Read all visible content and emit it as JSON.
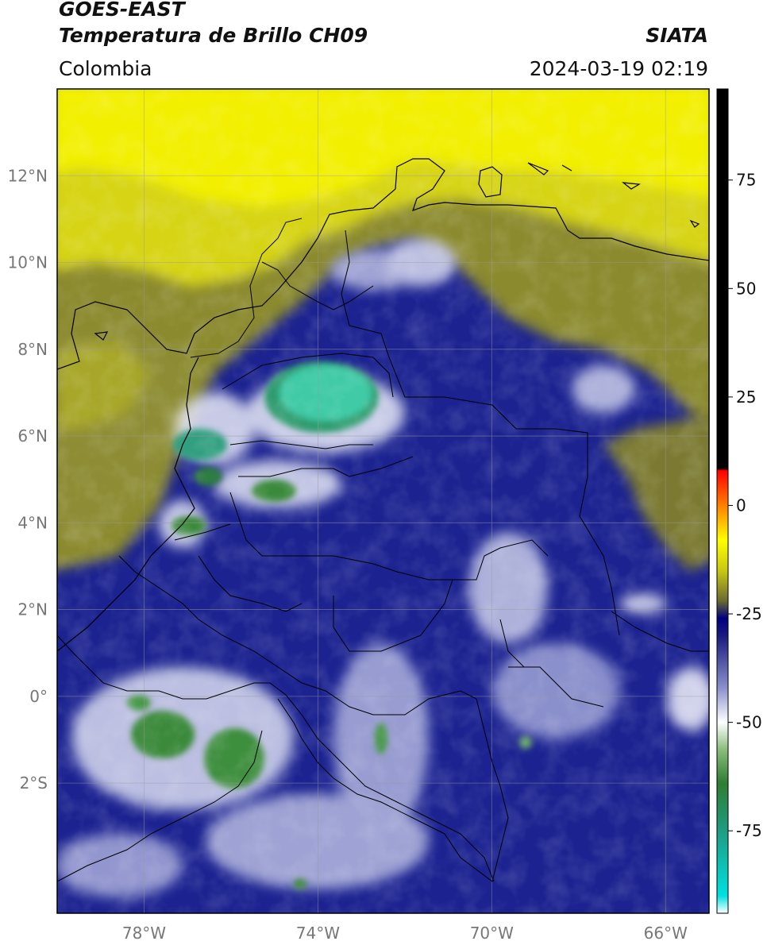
{
  "header": {
    "title": "GOES-EAST",
    "subtitle": "Temperatura de Brillo CH09",
    "region": "Colombia",
    "source": "SIATA",
    "datetime": "2024-03-19 02:19"
  },
  "map": {
    "lon_range": [
      -80,
      -65
    ],
    "lat_range": [
      -5,
      14
    ],
    "lon_ticks": [
      {
        "value": -78,
        "label": "78°W"
      },
      {
        "value": -74,
        "label": "74°W"
      },
      {
        "value": -70,
        "label": "70°W"
      },
      {
        "value": -66,
        "label": "66°W"
      }
    ],
    "lat_ticks": [
      {
        "value": 12,
        "label": "12°N"
      },
      {
        "value": 10,
        "label": "10°N"
      },
      {
        "value": 8,
        "label": "8°N"
      },
      {
        "value": 6,
        "label": "6°N"
      },
      {
        "value": 4,
        "label": "4°N"
      },
      {
        "value": 2,
        "label": "2°N"
      },
      {
        "value": 0,
        "label": "0°"
      },
      {
        "value": -2,
        "label": "2°S"
      }
    ],
    "grid": true
  },
  "colorbar": {
    "ticks": [
      {
        "value": 75,
        "label": "75"
      },
      {
        "value": 50,
        "label": "50"
      },
      {
        "value": 25,
        "label": "25"
      },
      {
        "value": 0,
        "label": "0"
      },
      {
        "value": -25,
        "label": "-25"
      },
      {
        "value": -50,
        "label": "-50"
      },
      {
        "value": -75,
        "label": "-75"
      }
    ],
    "range": [
      -94,
      96
    ],
    "stops": [
      {
        "value": -94,
        "color": "#ffffff"
      },
      {
        "value": -90,
        "color": "#00e0e0"
      },
      {
        "value": -75,
        "color": "#1f9c82"
      },
      {
        "value": -64,
        "color": "#2e7d32"
      },
      {
        "value": -56,
        "color": "#8fbf80"
      },
      {
        "value": -50,
        "color": "#ffffff"
      },
      {
        "value": -42,
        "color": "#8a8fcc"
      },
      {
        "value": -30,
        "color": "#1a1a80"
      },
      {
        "value": -26,
        "color": "#000080"
      },
      {
        "value": -22,
        "color": "#6a6a33"
      },
      {
        "value": -15,
        "color": "#c8c812"
      },
      {
        "value": -8,
        "color": "#ffff00"
      },
      {
        "value": 0,
        "color": "#ff8000"
      },
      {
        "value": 8,
        "color": "#ff0000"
      },
      {
        "value": 8.5,
        "color": "#000000"
      },
      {
        "value": 96,
        "color": "#000000"
      }
    ]
  },
  "colors": {
    "yellow": "#f0ee00",
    "olive": "#8e8a2c",
    "navy": "#1a1f8c",
    "white_cloud": "#e6e8f5",
    "green": "#3a8a3a",
    "teal": "#3ec9a5"
  }
}
